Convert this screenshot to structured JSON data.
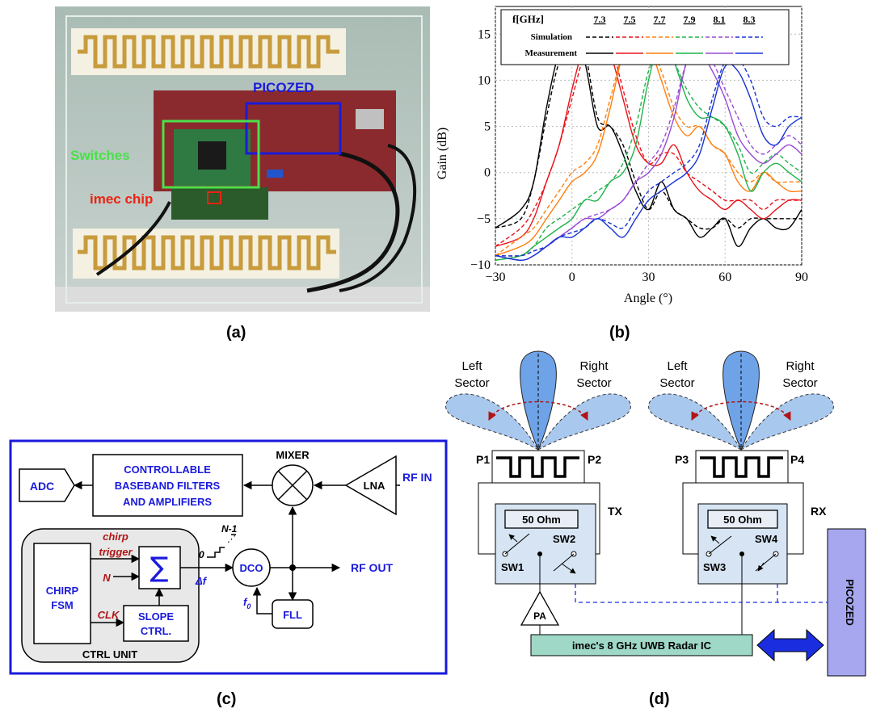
{
  "captions": {
    "a": "(a)",
    "b": "(b)",
    "c": "(c)",
    "d": "(d)"
  },
  "photo": {
    "label_picozed": "PICOZED",
    "label_switches": "Switches",
    "label_imec": "imec chip"
  },
  "colors": {
    "sim_line": "#000",
    "freq_colors": [
      "#000000",
      "#e8141a",
      "#ff7f0e",
      "#1fb34a",
      "#9a4ad6",
      "#1733d6"
    ],
    "ctrl_border": "#1a1adc",
    "lobe_fill": "#a9c8ee",
    "picozed_fill": "#a7a7f0",
    "radar_fill": "#9fd8c6"
  },
  "chart_data": {
    "type": "line",
    "xlabel": "Angle (°)",
    "ylabel": "Gain (dB)",
    "xlim": [
      -30,
      90
    ],
    "ylim": [
      -10,
      18
    ],
    "xticks": [
      "−30",
      "0",
      "30",
      "60",
      "90"
    ],
    "yticks": [
      "15",
      "10",
      "5",
      "0",
      "−5",
      "−10"
    ],
    "legend": {
      "header": "f[GHz]",
      "freqs": [
        "7.3",
        "7.5",
        "7.7",
        "7.9",
        "8.1",
        "8.3"
      ],
      "row_sim": "Simulation",
      "row_meas": "Measurement",
      "placement": "top"
    },
    "series": [
      {
        "name": "7.3",
        "x": [
          -30,
          -20,
          -15,
          -10,
          -5,
          0,
          5,
          10,
          15,
          20,
          25,
          30,
          35,
          40,
          45,
          50,
          55,
          60,
          65,
          70,
          75,
          80,
          85,
          90
        ],
        "measured": [
          -6,
          -4,
          -1,
          7,
          13,
          14.5,
          12,
          5,
          5,
          2,
          -2,
          -4,
          -1,
          -4,
          -5,
          -7,
          -6,
          -5,
          -8,
          -6,
          -5,
          -6,
          -6,
          -4
        ],
        "simulated": [
          -6,
          -5,
          -1,
          6,
          12,
          14,
          13,
          6,
          5,
          3,
          -1,
          -4,
          -2,
          -4,
          -5,
          -6,
          -6,
          -5,
          -6,
          -5,
          -5,
          -5,
          -5,
          -5
        ]
      },
      {
        "name": "7.5",
        "x": [
          -30,
          -20,
          -15,
          -10,
          -5,
          0,
          5,
          10,
          15,
          20,
          25,
          30,
          35,
          40,
          45,
          50,
          55,
          60,
          65,
          70,
          75,
          80,
          85,
          90
        ],
        "measured": [
          -8,
          -7,
          -5,
          -1,
          3,
          9,
          14,
          15.8,
          13,
          8,
          3,
          1,
          1,
          3,
          0,
          -2,
          -3,
          -4,
          -3,
          -4,
          -5,
          -4,
          -3,
          -3
        ],
        "simulated": [
          -8,
          -6,
          -4,
          -1,
          3,
          8,
          13,
          15.5,
          14,
          9,
          4,
          1,
          2,
          2,
          0,
          -1,
          -2,
          -3,
          -3,
          -3,
          -4,
          -3,
          -3,
          -3
        ]
      },
      {
        "name": "7.7",
        "x": [
          -30,
          -20,
          -15,
          -10,
          -5,
          0,
          5,
          10,
          15,
          20,
          25,
          30,
          35,
          40,
          45,
          50,
          55,
          60,
          65,
          70,
          75,
          80,
          85,
          90
        ],
        "measured": [
          -9,
          -8,
          -7,
          -5,
          -3,
          -1,
          0,
          2,
          7,
          13,
          15.8,
          14,
          10,
          6,
          4,
          5,
          3,
          2,
          -1,
          -2,
          0,
          -1,
          -2,
          -2
        ],
        "simulated": [
          -9,
          -7,
          -6,
          -4,
          -2,
          0,
          1,
          3,
          8,
          13,
          15.5,
          14,
          11,
          7,
          5,
          5,
          3,
          2,
          0,
          -1,
          0,
          -1,
          -1,
          -1
        ]
      },
      {
        "name": "7.9",
        "x": [
          -30,
          -20,
          -15,
          -10,
          -5,
          0,
          5,
          10,
          15,
          20,
          25,
          30,
          35,
          40,
          45,
          50,
          55,
          60,
          65,
          70,
          75,
          80,
          85,
          90
        ],
        "measured": [
          -9.5,
          -9,
          -8,
          -7,
          -6,
          -5,
          -3,
          -3,
          -1,
          0,
          3,
          10,
          14.5,
          12,
          8,
          6,
          6,
          5,
          2,
          -2,
          0,
          1,
          0,
          -1
        ],
        "simulated": [
          -9.5,
          -9,
          -8,
          -6,
          -5,
          -4,
          -3,
          -2,
          -1,
          1,
          5,
          11,
          14,
          12,
          9,
          7,
          6,
          5,
          3,
          0,
          1,
          2,
          1,
          0
        ]
      },
      {
        "name": "8.1",
        "x": [
          -30,
          -20,
          -15,
          -10,
          -5,
          0,
          5,
          10,
          15,
          20,
          25,
          30,
          35,
          40,
          45,
          50,
          55,
          60,
          65,
          70,
          75,
          80,
          85,
          90
        ],
        "measured": [
          -9,
          -9.5,
          -9,
          -8,
          -7,
          -6,
          -5,
          -5,
          -4,
          -3,
          -1,
          0,
          2,
          6,
          12,
          13,
          11,
          8,
          4,
          2,
          1,
          2,
          3,
          2
        ],
        "simulated": [
          -9,
          -9,
          -8.5,
          -8,
          -7,
          -6,
          -5,
          -4.5,
          -4,
          -3,
          -1,
          1,
          3,
          7,
          12,
          13.3,
          12,
          9,
          6,
          3,
          2,
          3,
          4,
          3
        ]
      },
      {
        "name": "8.3",
        "x": [
          -30,
          -20,
          -15,
          -10,
          -5,
          0,
          5,
          10,
          15,
          20,
          25,
          30,
          35,
          40,
          45,
          50,
          55,
          60,
          65,
          70,
          75,
          80,
          85,
          90
        ],
        "measured": [
          -9,
          -9.5,
          -9,
          -8,
          -7,
          -7,
          -6,
          -5,
          -6,
          -7,
          -5,
          -3,
          -2,
          -1,
          0,
          2,
          7,
          11.5,
          11,
          8,
          4,
          3,
          5,
          6
        ],
        "simulated": [
          -9,
          -9,
          -8.5,
          -8,
          -7,
          -6.5,
          -6,
          -5,
          -5.5,
          -6,
          -4,
          -2,
          -1,
          0,
          1,
          3,
          8,
          12,
          12.3,
          10,
          6,
          5,
          6,
          6
        ]
      }
    ]
  },
  "ctrl": {
    "adc": "ADC",
    "filters_l1": "CONTROLLABLE",
    "filters_l2": "BASEBAND FILTERS",
    "filters_l3": "AND AMPLIFIERS",
    "mixer": "MIXER",
    "lna": "LNA",
    "rf_in": "RF IN",
    "rf_out": "RF OUT",
    "chirp_trigger_l1": "chirp",
    "chirp_trigger_l2": "trigger",
    "n": "N",
    "clk": "CLK",
    "chirp_fsm_l1": "CHIRP",
    "chirp_fsm_l2": "FSM",
    "sum": "∑",
    "slope_l1": "SLOPE",
    "slope_l2": "CTRL.",
    "ctrl_unit": "CTRL UNIT",
    "zero": "0",
    "n_minus_1": "N-1",
    "delta_f": "Δf",
    "dco": "DCO",
    "f0_main": "f",
    "f0_sub": "0",
    "fll": "FLL"
  },
  "system": {
    "left_sector": [
      "Left",
      "Sector"
    ],
    "right_sector": [
      "Right",
      "Sector"
    ],
    "p1": "P1",
    "p2": "P2",
    "p3": "P3",
    "p4": "P4",
    "tx": "TX",
    "rx": "RX",
    "ohm": "50 Ohm",
    "sw1": "SW1",
    "sw2": "SW2",
    "sw3": "SW3",
    "sw4": "SW4",
    "pa": "PA",
    "radar_ic": "imec's 8 GHz UWB Radar IC",
    "picozed": "PICOZED"
  }
}
